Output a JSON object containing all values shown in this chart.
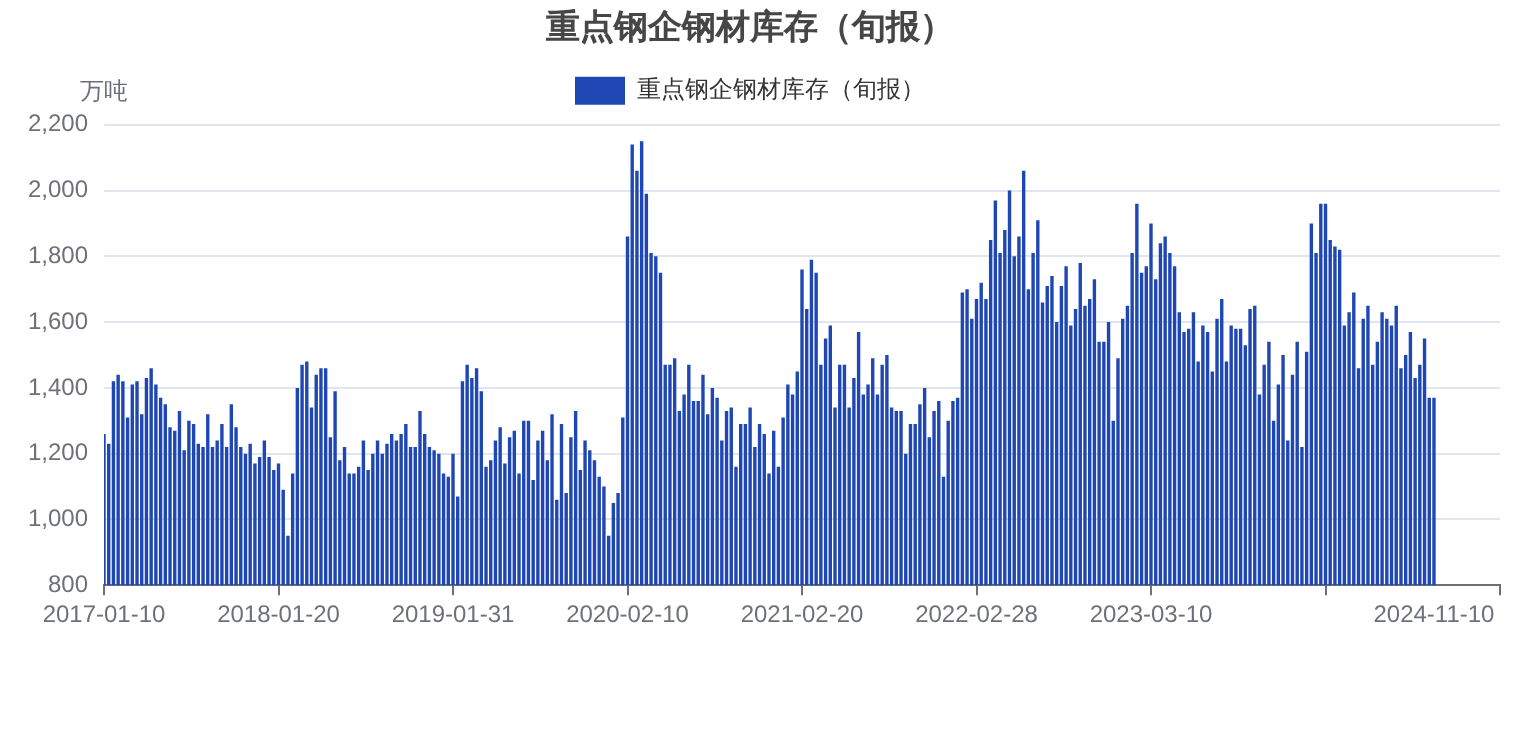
{
  "chart_data": {
    "type": "bar",
    "title": "重点钢企钢材库存（旬报）",
    "ylabel": "万吨",
    "legend": "top",
    "categories": [
      "2017-01-10",
      null,
      null,
      null,
      null,
      null,
      null,
      null,
      null,
      null,
      null,
      null,
      null,
      null,
      null,
      null,
      null,
      null,
      null,
      null,
      null,
      null,
      null,
      null,
      null,
      null,
      null,
      null,
      null,
      null,
      null,
      null,
      null,
      null,
      null,
      null,
      null,
      "2018-01-20",
      null,
      null,
      null,
      null,
      null,
      null,
      null,
      null,
      null,
      null,
      null,
      null,
      null,
      null,
      null,
      null,
      null,
      null,
      null,
      null,
      null,
      null,
      null,
      null,
      null,
      null,
      null,
      null,
      null,
      null,
      null,
      null,
      null,
      null,
      null,
      null,
      "2019-01-31",
      null,
      null,
      null,
      null,
      null,
      null,
      null,
      null,
      null,
      null,
      null,
      null,
      null,
      null,
      null,
      null,
      null,
      null,
      null,
      null,
      null,
      null,
      null,
      null,
      null,
      null,
      null,
      null,
      null,
      null,
      null,
      null,
      null,
      null,
      null,
      null,
      "2020-02-10",
      null,
      null,
      null,
      null,
      null,
      null,
      null,
      null,
      null,
      null,
      null,
      null,
      null,
      null,
      null,
      null,
      null,
      null,
      null,
      null,
      null,
      null,
      null,
      null,
      null,
      null,
      null,
      null,
      null,
      null,
      null,
      null,
      null,
      null,
      null,
      null,
      "2021-02-20",
      null,
      null,
      null,
      null,
      null,
      null,
      null,
      null,
      null,
      null,
      null,
      null,
      null,
      null,
      null,
      null,
      null,
      null,
      null,
      null,
      null,
      null,
      null,
      null,
      null,
      null,
      null,
      null,
      null,
      null,
      null,
      null,
      null,
      null,
      null,
      null,
      "2022-02-28",
      null,
      null,
      null,
      null,
      null,
      null,
      null,
      null,
      null,
      null,
      null,
      null,
      null,
      null,
      null,
      null,
      null,
      null,
      null,
      null,
      null,
      null,
      null,
      null,
      null,
      null,
      null,
      null,
      null,
      null,
      null,
      null,
      null,
      null,
      null,
      null,
      "2023-03-10",
      null,
      null,
      null,
      null,
      null,
      null,
      null,
      null,
      null,
      null,
      null,
      null,
      null,
      null,
      null,
      null,
      null,
      null,
      null,
      null,
      null,
      null,
      null,
      null,
      null,
      null,
      null,
      null,
      null,
      null,
      null,
      null,
      null,
      null,
      null,
      null,
      null,
      null,
      null,
      null,
      null,
      null,
      null,
      null,
      null,
      null,
      null,
      null,
      null,
      null,
      null,
      null,
      null,
      null,
      null,
      null,
      null,
      null,
      null,
      "2024-11-10",
      null,
      null,
      null,
      null,
      null,
      null,
      null,
      null,
      null,
      null,
      null,
      null,
      null,
      null
    ],
    "series": [
      {
        "name": "重点钢企钢材库存（旬报）",
        "color": "#1f47b4",
        "values": [
          1260,
          1230,
          1420,
          1440,
          1420,
          1310,
          1410,
          1420,
          1320,
          1430,
          1460,
          1410,
          1370,
          1350,
          1280,
          1270,
          1330,
          1210,
          1300,
          1290,
          1230,
          1220,
          1320,
          1220,
          1240,
          1290,
          1220,
          1350,
          1280,
          1220,
          1200,
          1230,
          1170,
          1190,
          1240,
          1190,
          1150,
          1170,
          1090,
          950,
          1140,
          1400,
          1470,
          1480,
          1340,
          1440,
          1460,
          1460,
          1250,
          1390,
          1180,
          1220,
          1140,
          1140,
          1160,
          1240,
          1150,
          1200,
          1240,
          1200,
          1230,
          1260,
          1240,
          1260,
          1290,
          1220,
          1220,
          1330,
          1260,
          1220,
          1210,
          1200,
          1140,
          1130,
          1200,
          1070,
          1420,
          1470,
          1430,
          1460,
          1390,
          1160,
          1180,
          1240,
          1280,
          1170,
          1250,
          1270,
          1140,
          1300,
          1300,
          1120,
          1240,
          1270,
          1180,
          1320,
          1060,
          1290,
          1080,
          1250,
          1330,
          1150,
          1240,
          1210,
          1180,
          1130,
          1100,
          950,
          1050,
          1080,
          1310,
          1860,
          2140,
          2060,
          2150,
          1990,
          1810,
          1800,
          1750,
          1470,
          1470,
          1490,
          1330,
          1380,
          1470,
          1360,
          1360,
          1440,
          1320,
          1400,
          1370,
          1240,
          1330,
          1340,
          1160,
          1290,
          1290,
          1340,
          1220,
          1290,
          1260,
          1140,
          1270,
          1160,
          1310,
          1410,
          1380,
          1450,
          1760,
          1640,
          1790,
          1750,
          1470,
          1550,
          1590,
          1340,
          1470,
          1470,
          1340,
          1430,
          1570,
          1380,
          1410,
          1490,
          1380,
          1470,
          1500,
          1340,
          1330,
          1330,
          1200,
          1290,
          1290,
          1350,
          1400,
          1250,
          1330,
          1360,
          1130,
          1300,
          1360,
          1370,
          1690,
          1700,
          1610,
          1670,
          1720,
          1670,
          1850,
          1970,
          1810,
          1880,
          2000,
          1800,
          1860,
          2060,
          1700,
          1810,
          1910,
          1660,
          1710,
          1740,
          1600,
          1710,
          1770,
          1590,
          1640,
          1780,
          1650,
          1670,
          1730,
          1540,
          1540,
          1600,
          1300,
          1490,
          1610,
          1650,
          1810,
          1960,
          1750,
          1770,
          1900,
          1730,
          1840,
          1860,
          1810,
          1770,
          1630,
          1570,
          1580,
          1630,
          1480,
          1590,
          1570,
          1450,
          1610,
          1670,
          1480,
          1590,
          1580,
          1580,
          1530,
          1640,
          1650,
          1380,
          1470,
          1540,
          1300,
          1410,
          1500,
          1240,
          1440,
          1540,
          1220,
          1510,
          1900,
          1810,
          1960,
          1960,
          1850,
          1830,
          1820,
          1590,
          1630,
          1690,
          1460,
          1610,
          1650,
          1470,
          1540,
          1630,
          1610,
          1590,
          1650,
          1460,
          1500,
          1570,
          1430,
          1470,
          1550,
          1370,
          1370,
          null,
          null,
          null,
          null,
          null,
          null,
          null,
          null,
          null,
          null,
          null,
          null,
          null,
          null
        ]
      }
    ],
    "ylim": [
      800,
      2200
    ],
    "yticks": [
      {
        "value": 800,
        "label": "800"
      },
      {
        "value": 1000,
        "label": "1,000"
      },
      {
        "value": 1200,
        "label": "1,200"
      },
      {
        "value": 1400,
        "label": "1,400"
      },
      {
        "value": 1600,
        "label": "1,600"
      },
      {
        "value": 1800,
        "label": "1,800"
      },
      {
        "value": 2000,
        "label": "2,000"
      },
      {
        "value": 2200,
        "label": "2,200"
      }
    ],
    "grid": "y"
  }
}
